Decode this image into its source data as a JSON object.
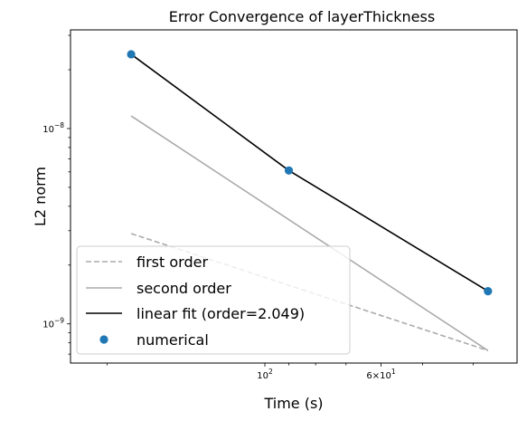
{
  "chart_data": {
    "type": "line",
    "title": "Error Convergence of layerThickness",
    "xlabel": "Time (s)",
    "ylabel": "L2 norm",
    "xscale": "log",
    "yscale": "log",
    "x_inverted": true,
    "xlim": [
      235,
      33
    ],
    "ylim": [
      6.3e-10,
      3.2e-08
    ],
    "grid": false,
    "legend_position": "lower-left",
    "x_tick_labels": [
      {
        "value": 100,
        "label": "10^2"
      },
      {
        "value": 60,
        "label": "6×10^1"
      }
    ],
    "y_tick_labels": [
      {
        "value": 1e-08,
        "label": "10^-8"
      },
      {
        "value": 1e-09,
        "label": "10^-9"
      }
    ],
    "x_minor_ticks": [
      90,
      80,
      70,
      50,
      40,
      200
    ],
    "y_minor_ticks": [
      2e-09,
      3e-09,
      4e-09,
      5e-09,
      6e-09,
      7e-09,
      8e-09,
      9e-09,
      2e-08,
      3e-08,
      7e-10,
      8e-10,
      9e-10
    ],
    "series": [
      {
        "name": "first order",
        "style": "dashed",
        "color": "#aaaaaa",
        "x": [
          180,
          37.5
        ],
        "y": [
          2.9e-09,
          7.3e-10
        ]
      },
      {
        "name": "second order",
        "style": "solid",
        "color": "#aaaaaa",
        "x": [
          180,
          37.5
        ],
        "y": [
          1.16e-08,
          7.3e-10
        ]
      },
      {
        "name": "linear fit (order=2.049)",
        "style": "solid",
        "color": "#000000",
        "x": [
          180,
          90,
          37.5
        ],
        "y": [
          2.4e-08,
          6.1e-09,
          1.47e-09
        ]
      },
      {
        "name": "numerical",
        "style": "marker",
        "color": "#1f77b4",
        "x": [
          180,
          90,
          37.5
        ],
        "y": [
          2.4e-08,
          6.1e-09,
          1.47e-09
        ]
      }
    ]
  }
}
